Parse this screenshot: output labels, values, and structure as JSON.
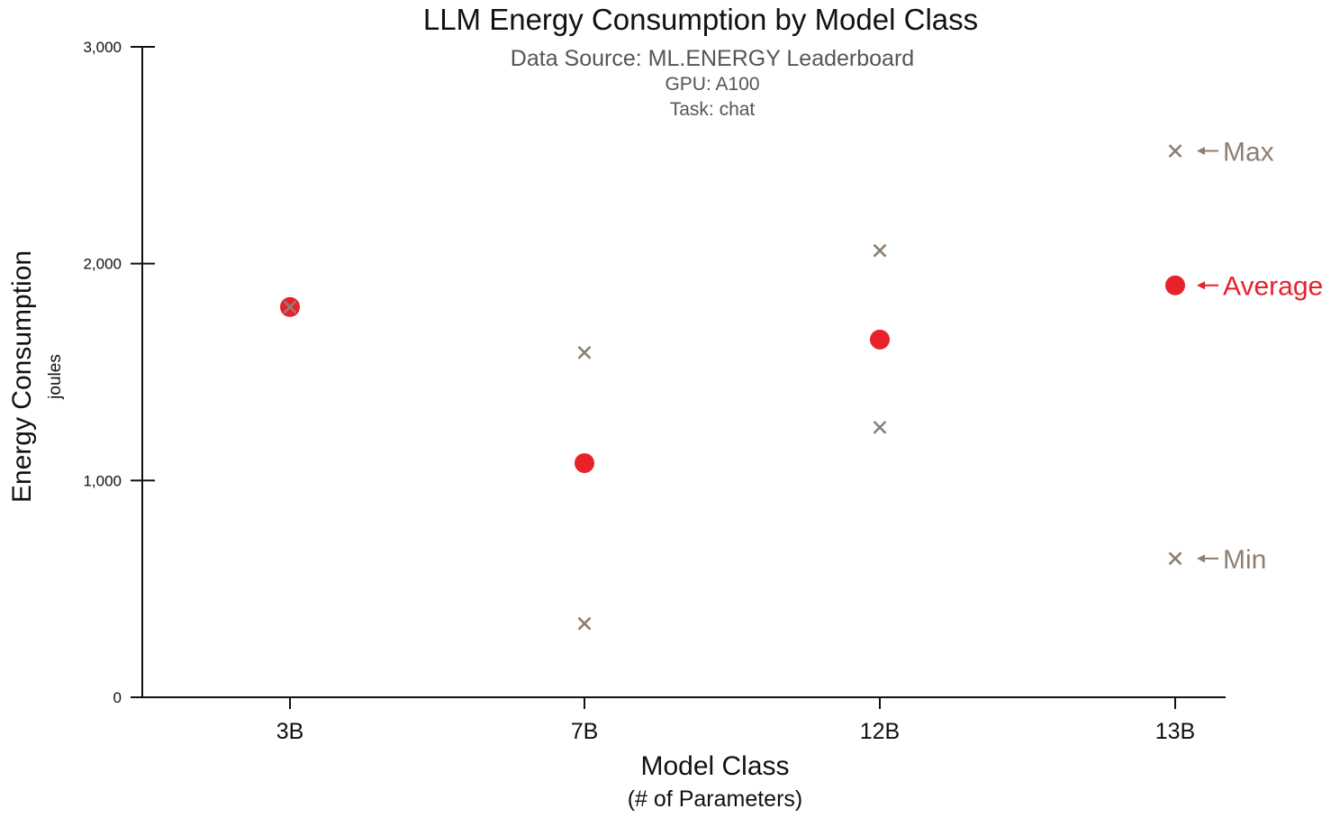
{
  "chart_data": {
    "type": "scatter",
    "title": "LLM Energy Consumption by Model Class",
    "subtitle": "Data Source: ML.ENERGY Leaderboard",
    "notes": [
      "GPU: A100",
      "Task: chat"
    ],
    "xlabel": "Model Class",
    "xlabel_sub": "(# of Parameters)",
    "ylabel": "Energy Consumption",
    "ylabel_sub": "joules",
    "categories": [
      "3B",
      "7B",
      "12B",
      "13B"
    ],
    "ylim": [
      0,
      3000
    ],
    "yticks": [
      0,
      1000,
      2000,
      3000
    ],
    "ytick_labels": [
      "0",
      "1,000",
      "2,000",
      "3,000"
    ],
    "grid": false,
    "series": [
      {
        "name": "Max",
        "marker": "x",
        "color": "#8c7f74",
        "values": [
          1800,
          1590,
          2060,
          2520
        ]
      },
      {
        "name": "Average",
        "marker": "circle",
        "color": "#e8212a",
        "values": [
          1800,
          1080,
          1650,
          1900
        ]
      },
      {
        "name": "Min",
        "marker": "x",
        "color": "#8c7f74",
        "values": [
          1800,
          340,
          1245,
          640
        ]
      }
    ],
    "annotations": [
      {
        "text": "Max",
        "series": "Max",
        "category": "13B",
        "color": "#8c7f74"
      },
      {
        "text": "Average",
        "series": "Average",
        "category": "13B",
        "color": "#e8212a"
      },
      {
        "text": "Min",
        "series": "Min",
        "category": "13B",
        "color": "#8c7f74"
      }
    ]
  }
}
